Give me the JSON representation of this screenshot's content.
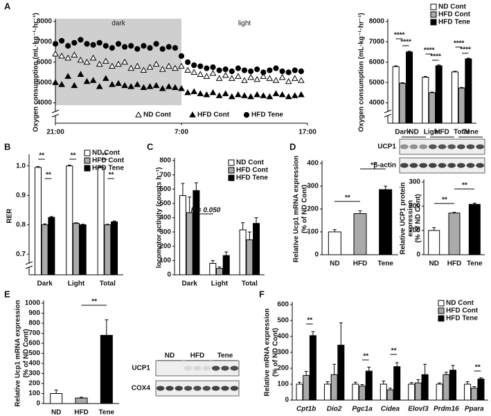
{
  "panels": [
    "A",
    "B",
    "C",
    "D",
    "E",
    "F"
  ],
  "chart_data": [
    {
      "type": "line",
      "ylabel": [
        "Oxygen consumption (mL·kg⁻¹·hr⁻¹)"
      ],
      "region_labels": [
        "dark",
        "light"
      ],
      "shaded_x": [
        0,
        10
      ],
      "xlim": [
        0,
        20
      ],
      "xticks": [
        {
          "value": 0,
          "label": "21:00"
        },
        {
          "value": 10,
          "label": "7:00"
        },
        {
          "value": 20,
          "label": "17:00"
        }
      ],
      "ylim": [
        3000,
        8000
      ],
      "yticks": [
        4000,
        5000,
        6000,
        7000,
        8000
      ],
      "axis_break": true,
      "x": [
        0,
        0.5,
        1,
        1.5,
        2,
        2.5,
        3,
        3.5,
        4,
        4.5,
        5,
        5.5,
        6,
        6.5,
        7,
        7.5,
        8,
        8.5,
        9,
        9.5,
        10,
        10.5,
        11,
        11.5,
        12,
        12.5,
        13,
        13.5,
        14,
        14.5,
        15,
        15.5,
        16,
        16.5,
        17,
        17.5,
        18,
        18.5,
        19,
        19.5
      ],
      "series": [
        {
          "name": "ND Cont",
          "marker": "triangle",
          "color": "#ffffff",
          "values": [
            6400,
            6300,
            6200,
            6350,
            6100,
            6000,
            6200,
            5900,
            6050,
            5800,
            5900,
            6000,
            5700,
            5800,
            5600,
            5750,
            5900,
            5650,
            5800,
            5700,
            5800,
            5600,
            5500,
            5400,
            5300,
            5450,
            5200,
            5350,
            5200,
            5300,
            5100,
            5250,
            5150,
            5300,
            5200,
            5100,
            5250,
            5050,
            5200,
            5100
          ]
        },
        {
          "name": "HFD Cont",
          "marker": "triangle",
          "color": "#000000",
          "values": [
            5000,
            4900,
            5300,
            4850,
            5400,
            5050,
            5100,
            4800,
            5200,
            4900,
            4950,
            4850,
            4800,
            4900,
            4750,
            4800,
            4850,
            4700,
            4800,
            4750,
            4700,
            4500,
            4550,
            4450,
            4400,
            4500,
            4350,
            4450,
            4300,
            4400,
            4350,
            4300,
            4400,
            4350,
            4300,
            4450,
            4400,
            4300,
            4350,
            4400
          ]
        },
        {
          "name": "HFD Tene",
          "marker": "circle",
          "color": "#000000",
          "values": [
            6900,
            7050,
            6800,
            6950,
            7100,
            6900,
            6850,
            6950,
            6800,
            6700,
            6900,
            6750,
            6800,
            6650,
            6800,
            6700,
            6900,
            6650,
            6750,
            6700,
            6300,
            6000,
            5850,
            5800,
            5700,
            5750,
            5600,
            5650,
            5550,
            5700,
            5600,
            5550,
            5650,
            5500,
            5600,
            5700,
            5550,
            5500,
            5600,
            5550
          ]
        }
      ]
    },
    {
      "type": "bar",
      "ylabel": [
        "Oxygen consumption (mL·kg⁻¹·hr⁻¹)"
      ],
      "legend": true,
      "categories": [
        "Dark",
        "Light",
        "Total"
      ],
      "ylim": [
        3000,
        8000
      ],
      "yticks": [
        4000,
        5000,
        6000,
        7000,
        8000
      ],
      "axis_break": true,
      "series": [
        {
          "name": "ND Cont",
          "color": "#ffffff",
          "values": [
            5780,
            5260,
            5520
          ],
          "errors": [
            40,
            40,
            35
          ]
        },
        {
          "name": "HFD Cont",
          "color": "#aaaaaa",
          "values": [
            4960,
            4500,
            4730
          ],
          "errors": [
            30,
            30,
            30
          ]
        },
        {
          "name": "HFD Tene",
          "color": "#000000",
          "values": [
            6500,
            5820,
            6160
          ],
          "errors": [
            40,
            40,
            35
          ]
        }
      ],
      "annotations": [
        "****",
        "****",
        "****",
        "****",
        "****",
        "****"
      ]
    },
    {
      "type": "bar",
      "ylabel": [
        "RER"
      ],
      "legend": true,
      "categories": [
        "Dark",
        "Light",
        "Total"
      ],
      "ylim": [
        0.63,
        1.03
      ],
      "yticks": [
        0.7,
        0.8,
        0.9,
        {
          "value": 1,
          "label": "1.0"
        }
      ],
      "axis_break": true,
      "series": [
        {
          "name": "ND Cont",
          "color": "#ffffff",
          "values": [
            0.995,
            1.0,
            0.995
          ],
          "errors": [
            0.003,
            0.003,
            0.003
          ]
        },
        {
          "name": "HFD Cont",
          "color": "#aaaaaa",
          "values": [
            0.8,
            0.805,
            0.8
          ],
          "errors": [
            0.003,
            0.002,
            0.002
          ]
        },
        {
          "name": "HFD Tene",
          "color": "#000000",
          "values": [
            0.825,
            0.8,
            0.81
          ],
          "errors": [
            0.003,
            0.002,
            0.003
          ]
        }
      ],
      "annotations": [
        "**",
        "**",
        "**",
        "**",
        "**"
      ]
    },
    {
      "type": "bar",
      "ylabel": [
        "locomotor activity (counts h⁻¹)"
      ],
      "legend": true,
      "categories": [
        "Dark",
        "Light",
        "Total"
      ],
      "ylim": [
        0,
        800
      ],
      "yticks": [
        0,
        100,
        200,
        300,
        400,
        500,
        600,
        700,
        800
      ],
      "series": [
        {
          "name": "ND Cont",
          "color": "#ffffff",
          "values": [
            555,
            80,
            315
          ],
          "errors": [
            85,
            20,
            50
          ]
        },
        {
          "name": "HFD Cont",
          "color": "#aaaaaa",
          "values": [
            435,
            45,
            245
          ],
          "errors": [
            110,
            10,
            55
          ]
        },
        {
          "name": "HFD Tene",
          "color": "#000000",
          "values": [
            590,
            135,
            360
          ],
          "errors": [
            55,
            25,
            40
          ]
        }
      ],
      "annotations": [
        "P = 0.050"
      ]
    },
    {
      "type": "bar",
      "ylabel": [
        "Relative Ucp1 mRNA expression",
        "(% of ND Cont)"
      ],
      "categories": [
        "ND",
        "HFD",
        "Tene"
      ],
      "colors": [
        "#ffffff",
        "#aaaaaa",
        "#000000"
      ],
      "values": [
        100,
        180,
        285
      ],
      "errors": [
        10,
        12,
        15
      ],
      "ylim": [
        0,
        400
      ],
      "yticks": [
        0,
        100,
        200,
        300,
        400
      ],
      "annotations": [
        "**",
        "**"
      ]
    },
    {
      "type": "bar",
      "ylabel": [
        "Relative UCP1 protein",
        "expression",
        "(% of ND Cont)"
      ],
      "categories": [
        "ND",
        "HFD",
        "Tene"
      ],
      "colors": [
        "#ffffff",
        "#aaaaaa",
        "#000000"
      ],
      "values": [
        100,
        172,
        208
      ],
      "errors": [
        12,
        3,
        5
      ],
      "ylim": [
        0,
        300
      ],
      "yticks": [
        0,
        100,
        200,
        300
      ],
      "annotations": [
        "**",
        "**"
      ]
    },
    {
      "type": "bar",
      "ylabel": [
        "Relative Ucp1 mRNA expression",
        "(% of ND Cont)"
      ],
      "categories": [
        "ND",
        "HFD",
        "Tene"
      ],
      "colors": [
        "#ffffff",
        "#aaaaaa",
        "#000000"
      ],
      "values": [
        100,
        55,
        680
      ],
      "errors": [
        35,
        8,
        155
      ],
      "ylim": [
        0,
        1000
      ],
      "yticks": [
        0,
        100,
        200,
        300,
        400,
        500,
        600,
        700,
        800,
        900,
        1000
      ],
      "annotations": [
        "**"
      ]
    },
    {
      "type": "bar",
      "ylabel": [
        "Relative mRNA expression",
        "(% of ND Cont)"
      ],
      "legend": true,
      "italic_categories": true,
      "categories": [
        "Cpt1b",
        "Dio2",
        "Pgc1a",
        "Cidea",
        "Elovl3",
        "Prdm16",
        "Ppara"
      ],
      "ylim": [
        0,
        600
      ],
      "yticks": [
        0,
        100,
        200,
        300,
        400,
        500,
        600
      ],
      "series": [
        {
          "name": "ND Cont",
          "color": "#ffffff",
          "values": [
            100,
            100,
            100,
            100,
            100,
            100,
            100
          ],
          "errors": [
            12,
            15,
            12,
            20,
            10,
            8,
            15
          ]
        },
        {
          "name": "HFD Cont",
          "color": "#aaaaaa",
          "values": [
            155,
            160,
            88,
            65,
            108,
            160,
            75
          ],
          "errors": [
            25,
            65,
            10,
            10,
            20,
            15,
            10
          ]
        },
        {
          "name": "HFD Tene",
          "color": "#000000",
          "values": [
            405,
            345,
            182,
            210,
            160,
            188,
            132
          ],
          "errors": [
            25,
            140,
            25,
            25,
            65,
            30,
            8
          ]
        }
      ],
      "annotations": [
        "**",
        "**",
        "**",
        "**"
      ]
    }
  ],
  "blots": [
    {
      "lanes": [
        "ND",
        "HFD",
        "Tene"
      ],
      "rows": [
        "UCP1",
        "β-actin"
      ]
    },
    {
      "lanes": [
        "ND",
        "HFD",
        "Tene"
      ],
      "rows": [
        "UCP1",
        "COX4"
      ]
    }
  ]
}
